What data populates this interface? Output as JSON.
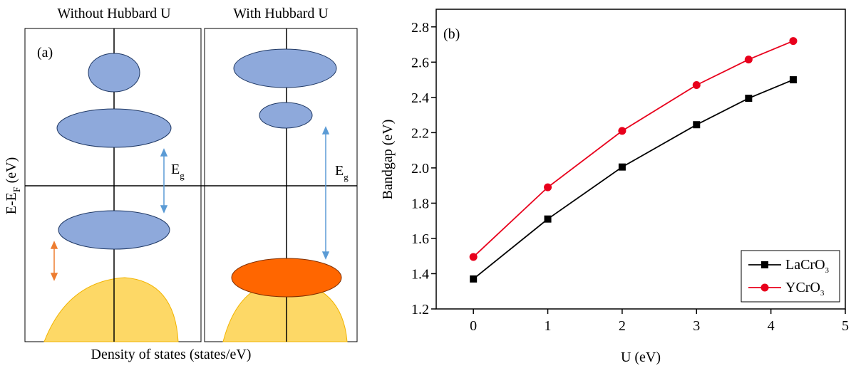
{
  "diagram": {
    "panels": [
      "Without Hubbard U",
      "With Hubbard U"
    ],
    "label": "(a)",
    "y_axis": {
      "text": "E-E",
      "sub": "F",
      "unit": " (eV)"
    },
    "gap_labels": [
      {
        "text": "E",
        "sub": "g"
      },
      {
        "text": "E",
        "sub": "g"
      }
    ],
    "x_axis": "Density of states (states/eV)"
  },
  "chart_data": {
    "type": "line",
    "title": "(b)",
    "x_label": "U (eV)",
    "y_label": "Bandgap (eV)",
    "x": [
      0,
      1,
      2,
      3,
      3.7,
      4.3
    ],
    "series": [
      {
        "name": "LaCrO3",
        "color": "#000000",
        "marker": "square",
        "values": [
          1.37,
          1.71,
          2.005,
          2.245,
          2.395,
          2.5
        ]
      },
      {
        "name": "YCrO3",
        "color": "#e8001c",
        "marker": "circle",
        "values": [
          1.495,
          1.89,
          2.21,
          2.47,
          2.615,
          2.72
        ]
      }
    ],
    "xlim": [
      -0.5,
      5
    ],
    "xticks": [
      0,
      1,
      2,
      3,
      4,
      5
    ],
    "ylim": [
      1.2,
      2.9
    ],
    "yticks": [
      1.2,
      1.4,
      1.6,
      1.8,
      {
        "value": 2,
        "label": "2.0"
      },
      2.2,
      2.4,
      2.6,
      2.8
    ],
    "legend": "lower right"
  }
}
